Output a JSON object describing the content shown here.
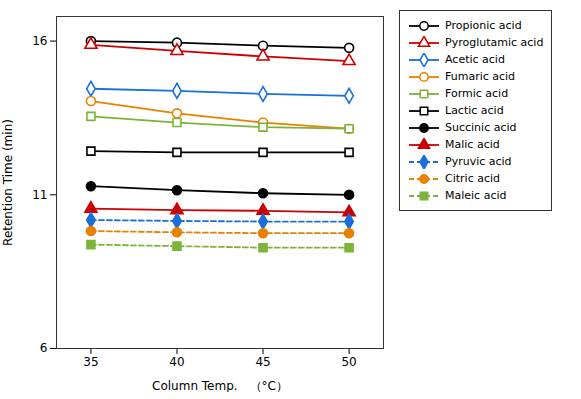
{
  "chart_data": {
    "type": "line",
    "x": [
      35,
      40,
      45,
      50
    ],
    "series": [
      {
        "name": "Propionic acid",
        "values": [
          16.0,
          15.95,
          15.85,
          15.78
        ],
        "color": "#000000",
        "marker": "circle-open",
        "line_style": "solid"
      },
      {
        "name": "Pyroglutamic acid",
        "values": [
          15.88,
          15.68,
          15.5,
          15.35
        ],
        "color": "#cc0000",
        "marker": "triangle-open",
        "line_style": "solid"
      },
      {
        "name": "Acetic acid",
        "values": [
          14.45,
          14.38,
          14.28,
          14.22
        ],
        "color": "#1a6fdb",
        "marker": "diamond-open",
        "line_style": "solid"
      },
      {
        "name": "Fumaric acid",
        "values": [
          14.05,
          13.65,
          13.35,
          13.15
        ],
        "color": "#e88000",
        "marker": "circle-open",
        "line_style": "solid"
      },
      {
        "name": "Formic acid",
        "values": [
          13.55,
          13.35,
          13.2,
          13.15
        ],
        "color": "#7db33a",
        "marker": "square-open",
        "line_style": "solid"
      },
      {
        "name": "Lactic acid",
        "values": [
          12.42,
          12.38,
          12.38,
          12.38
        ],
        "color": "#000000",
        "marker": "square-open",
        "line_style": "solid"
      },
      {
        "name": "Succinic acid",
        "values": [
          11.28,
          11.15,
          11.05,
          11.0
        ],
        "color": "#000000",
        "marker": "circle",
        "line_style": "solid"
      },
      {
        "name": "Malic acid",
        "values": [
          10.55,
          10.5,
          10.48,
          10.43
        ],
        "color": "#cc0000",
        "marker": "triangle",
        "line_style": "solid"
      },
      {
        "name": "Pyruvic acid",
        "values": [
          10.18,
          10.15,
          10.13,
          10.13
        ],
        "color": "#1a6fdb",
        "marker": "diamond",
        "line_style": "dashed"
      },
      {
        "name": "Citric acid",
        "values": [
          9.82,
          9.78,
          9.75,
          9.75
        ],
        "color": "#e88000",
        "marker": "circle",
        "line_style": "dashed"
      },
      {
        "name": "Maleic acid",
        "values": [
          9.38,
          9.33,
          9.28,
          9.28
        ],
        "color": "#7db33a",
        "marker": "square",
        "line_style": "dashed"
      }
    ],
    "xlabel": "Column Temp.　（°C）",
    "ylabel": "Retention Time (min)",
    "xlim": [
      33,
      52
    ],
    "ylim": [
      6.0,
      16.8
    ],
    "xticks": [
      35,
      40,
      45,
      50
    ],
    "yticks": [
      6,
      11,
      16
    ],
    "grid": false,
    "legend": "right"
  }
}
